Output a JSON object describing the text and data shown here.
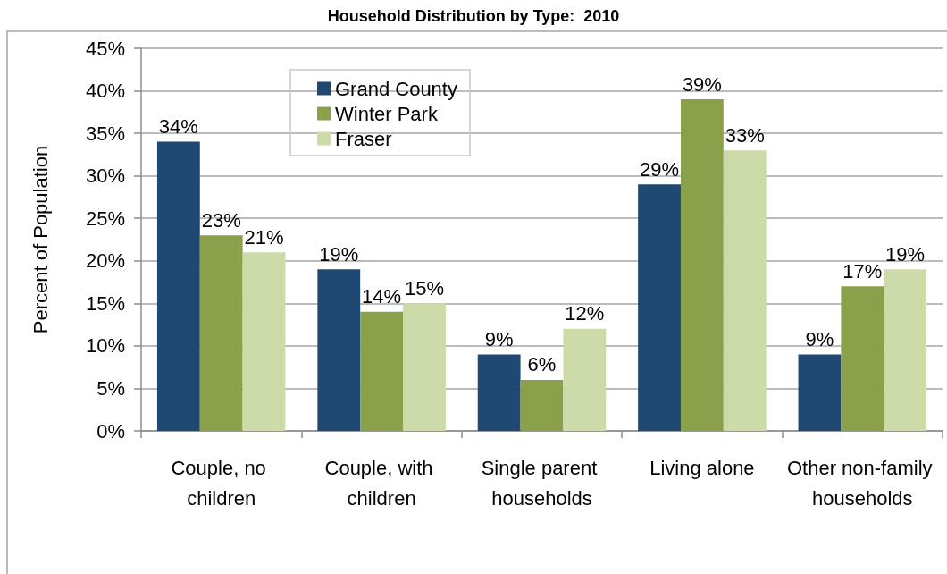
{
  "chart_data": {
    "type": "bar",
    "title": "Household Distribution by Type:  2010",
    "ylabel": "Percent of Population",
    "categories": [
      "Couple, no children",
      "Couple, with children",
      "Single parent households",
      "Living alone",
      "Other non-family households"
    ],
    "series": [
      {
        "name": "Grand County",
        "color": "#1f4872",
        "values": [
          34,
          19,
          9,
          29,
          9
        ],
        "value_labels": [
          "34%",
          "19%",
          "9%",
          "29%",
          "9%"
        ]
      },
      {
        "name": "Winter Park",
        "color": "#8aa04a",
        "values": [
          23,
          14,
          6,
          39,
          17
        ],
        "value_labels": [
          "23%",
          "14%",
          "6%",
          "39%",
          "17%"
        ]
      },
      {
        "name": "Fraser",
        "color": "#ccdba8",
        "values": [
          21,
          15,
          12,
          33,
          19
        ],
        "value_labels": [
          "21%",
          "15%",
          "12%",
          "33%",
          "19%"
        ]
      }
    ],
    "ylim": [
      0,
      45
    ],
    "yticks": [
      {
        "value": 0,
        "label": "0%"
      },
      {
        "value": 5,
        "label": "5%"
      },
      {
        "value": 10,
        "label": "10%"
      },
      {
        "value": 15,
        "label": "15%"
      },
      {
        "value": 20,
        "label": "20%"
      },
      {
        "value": 25,
        "label": "25%"
      },
      {
        "value": 30,
        "label": "30%"
      },
      {
        "value": 35,
        "label": "35%"
      },
      {
        "value": 40,
        "label": "40%"
      },
      {
        "value": 45,
        "label": "45%"
      }
    ],
    "grid": "y",
    "legend": "top left"
  }
}
